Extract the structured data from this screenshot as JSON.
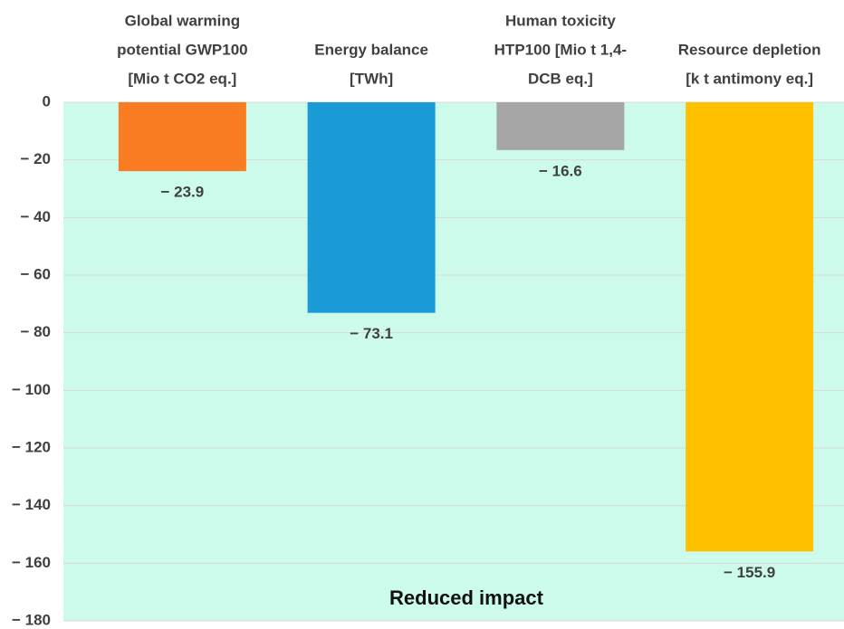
{
  "chart_data": {
    "type": "bar",
    "categories": [
      [
        "Global warming",
        "potential GWP100",
        "[Mio t CO2 eq.]"
      ],
      [
        "Energy balance",
        "[TWh]"
      ],
      [
        "Human toxicity",
        "HTP100 [Mio t 1,4-",
        "DCB eq.]"
      ],
      [
        "Resource depletion",
        "[k t antimony eq.]"
      ]
    ],
    "values": [
      -23.9,
      -73.1,
      -16.6,
      -155.9
    ],
    "value_labels": [
      "− 23.9",
      "− 73.1",
      "− 16.6",
      "− 155.9"
    ],
    "colors": [
      "#f97c22",
      "#1a9ad7",
      "#a6a6a6",
      "#ffc000"
    ],
    "ylim": [
      -180,
      0
    ],
    "yticks": [
      0,
      {
        "value": -20,
        "label": "− 20"
      },
      {
        "value": -40,
        "label": "− 40"
      },
      {
        "value": -60,
        "label": "− 60"
      },
      {
        "value": -80,
        "label": "− 80"
      },
      {
        "value": -100,
        "label": "− 100"
      },
      {
        "value": -120,
        "label": "− 120"
      },
      {
        "value": -140,
        "label": "− 140"
      },
      {
        "value": -160,
        "label": "− 160"
      },
      {
        "value": -180,
        "label": "− 180"
      }
    ],
    "grid": true,
    "annotation": "Reduced impact"
  }
}
